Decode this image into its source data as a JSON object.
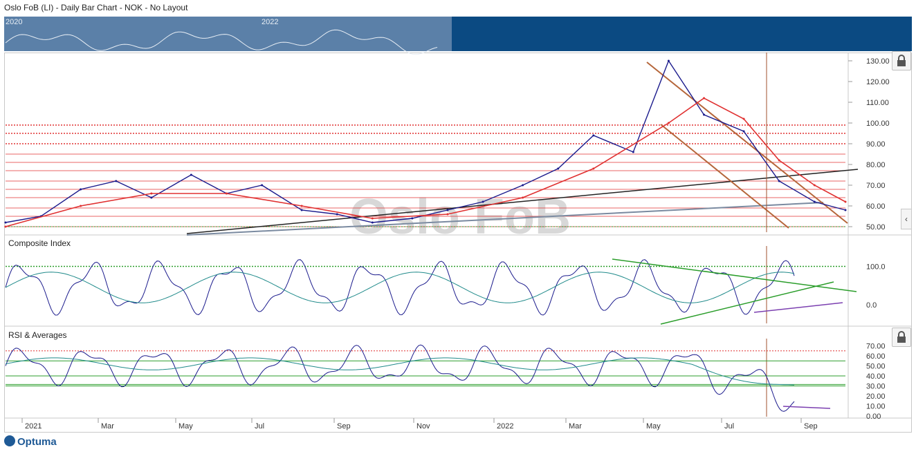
{
  "header": {
    "title": "Oslo FoB (LI) - Daily Bar Chart - NOK - No Layout"
  },
  "navigator": {
    "years": [
      "2020",
      "2022"
    ]
  },
  "watermark": "Oslo FoB",
  "brand": {
    "logo_text": "Optuma"
  },
  "icons": {
    "lock": "lock-icon",
    "collapse": "chevron-left-icon"
  },
  "colors": {
    "price": "#1a1a8c",
    "ma_red": "#e03030",
    "ma_teal": "#1f8a8a",
    "trend_brown": "#b5663a",
    "support_green": "#2a9d2a",
    "purple": "#7b3fb0",
    "nav_bg": "#0b4a82"
  },
  "chart_data": [
    {
      "type": "line",
      "panel": "price",
      "title": "",
      "y_ticks": [
        "130.00",
        "120.00",
        "110.00",
        "100.00",
        "90.00",
        "80.00",
        "70.00",
        "60.00",
        "50.00"
      ],
      "ylim": [
        46,
        133
      ],
      "x_ticks": [
        "2021",
        "Mar",
        "May",
        "Jul",
        "Sep",
        "Nov",
        "2022",
        "Mar",
        "May",
        "Jul",
        "Sep"
      ],
      "series": [
        {
          "role": "price",
          "x": [
            0,
            8,
            17,
            25,
            33,
            42,
            50,
            58,
            67,
            75,
            83,
            92,
            100,
            108,
            117,
            125,
            133,
            142,
            150,
            158,
            167,
            175,
            183,
            190
          ],
          "values": [
            52,
            55,
            68,
            72,
            64,
            75,
            66,
            70,
            58,
            56,
            52,
            54,
            58,
            62,
            70,
            78,
            94,
            86,
            130,
            104,
            96,
            72,
            62,
            58
          ]
        },
        {
          "role": "ma",
          "x": [
            0,
            17,
            33,
            50,
            67,
            83,
            100,
            117,
            133,
            150,
            158,
            167,
            175,
            183,
            190
          ],
          "values": [
            50,
            60,
            66,
            66,
            60,
            54,
            56,
            64,
            78,
            100,
            112,
            102,
            82,
            70,
            62
          ]
        }
      ],
      "horizontal_levels_red": [
        99,
        95,
        90,
        85,
        81,
        77,
        72,
        68,
        64,
        59,
        55,
        50
      ]
    },
    {
      "type": "line",
      "panel": "Composite Index",
      "title": "Composite Index",
      "y_ticks": [
        "100.0",
        "0.0"
      ],
      "ylim": [
        -50,
        150
      ]
    },
    {
      "type": "line",
      "panel": "RSI & Averages",
      "title": "RSI & Averages",
      "y_ticks": [
        "70.00",
        "60.00",
        "50.00",
        "40.00",
        "30.00",
        "20.00",
        "10.00",
        "0.00"
      ],
      "ylim": [
        0,
        85
      ]
    }
  ]
}
